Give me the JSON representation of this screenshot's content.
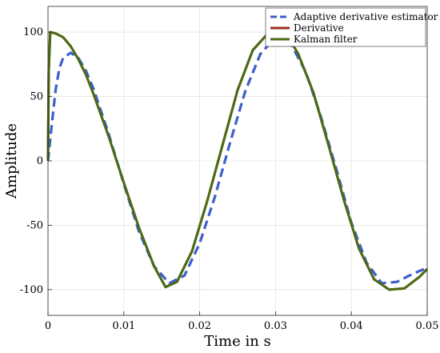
{
  "chart_data": {
    "type": "line",
    "title": "",
    "xlabel": "Time in s",
    "ylabel": "Amplitude",
    "xlim": [
      0,
      0.05
    ],
    "ylim": [
      -120,
      120
    ],
    "xticks": [
      "0",
      "0.01",
      "0.02",
      "0.03",
      "0.04",
      "0.05"
    ],
    "yticks": [
      "-100",
      "-50",
      "0",
      "50",
      "100"
    ],
    "grid": true,
    "legend_position": "top-right",
    "series": [
      {
        "name": "Adaptive derivative estimator",
        "color": "#3b5fcc",
        "style": "dashed",
        "x": [
          0,
          0.0005,
          0.001,
          0.0015,
          0.002,
          0.003,
          0.004,
          0.005,
          0.006,
          0.008,
          0.01,
          0.012,
          0.014,
          0.016,
          0.018,
          0.02,
          0.022,
          0.024,
          0.026,
          0.028,
          0.03,
          0.032,
          0.034,
          0.036,
          0.038,
          0.04,
          0.042,
          0.044,
          0.046,
          0.048,
          0.05
        ],
        "y": [
          0,
          28,
          55,
          72,
          80,
          84,
          80,
          70,
          56,
          21,
          -18,
          -55,
          -82,
          -95,
          -89,
          -64,
          -28,
          14,
          54,
          83,
          96,
          91,
          69,
          34,
          -6,
          -48,
          -79,
          -95,
          -94,
          -88,
          -83
        ]
      },
      {
        "name": "Derivative",
        "color": "#a0301c",
        "style": "solid",
        "x": [
          0,
          0.0001,
          0.0003,
          0.001,
          0.002,
          0.003,
          0.004,
          0.005,
          0.006,
          0.008,
          0.01,
          0.012,
          0.014,
          0.0155,
          0.017,
          0.019,
          0.021,
          0.023,
          0.025,
          0.027,
          0.029,
          0.0305,
          0.0315,
          0.033,
          0.035,
          0.037,
          0.039,
          0.041,
          0.043,
          0.045,
          0.047,
          0.049,
          0.05
        ],
        "y": [
          0,
          70,
          100,
          99,
          96,
          89,
          79,
          67,
          52,
          19,
          -17,
          -52,
          -82,
          -98,
          -94,
          -70,
          -31,
          12,
          55,
          86,
          99,
          100,
          98,
          83,
          53,
          12,
          -30,
          -68,
          -92,
          -100,
          -99,
          -90,
          -84
        ]
      },
      {
        "name": "Kalman filter",
        "color": "#4a6b14",
        "style": "solid",
        "x": [
          0,
          0.0001,
          0.0003,
          0.001,
          0.002,
          0.003,
          0.004,
          0.005,
          0.006,
          0.008,
          0.01,
          0.012,
          0.014,
          0.0155,
          0.017,
          0.019,
          0.021,
          0.023,
          0.025,
          0.027,
          0.029,
          0.0305,
          0.0315,
          0.033,
          0.035,
          0.037,
          0.039,
          0.041,
          0.043,
          0.045,
          0.047,
          0.049,
          0.05
        ],
        "y": [
          0,
          70,
          100,
          99,
          96,
          89,
          79,
          67,
          52,
          19,
          -17,
          -52,
          -82,
          -98,
          -94,
          -70,
          -31,
          12,
          55,
          86,
          99,
          100,
          98,
          83,
          53,
          12,
          -30,
          -68,
          -92,
          -100,
          -99,
          -90,
          -84
        ]
      }
    ]
  }
}
